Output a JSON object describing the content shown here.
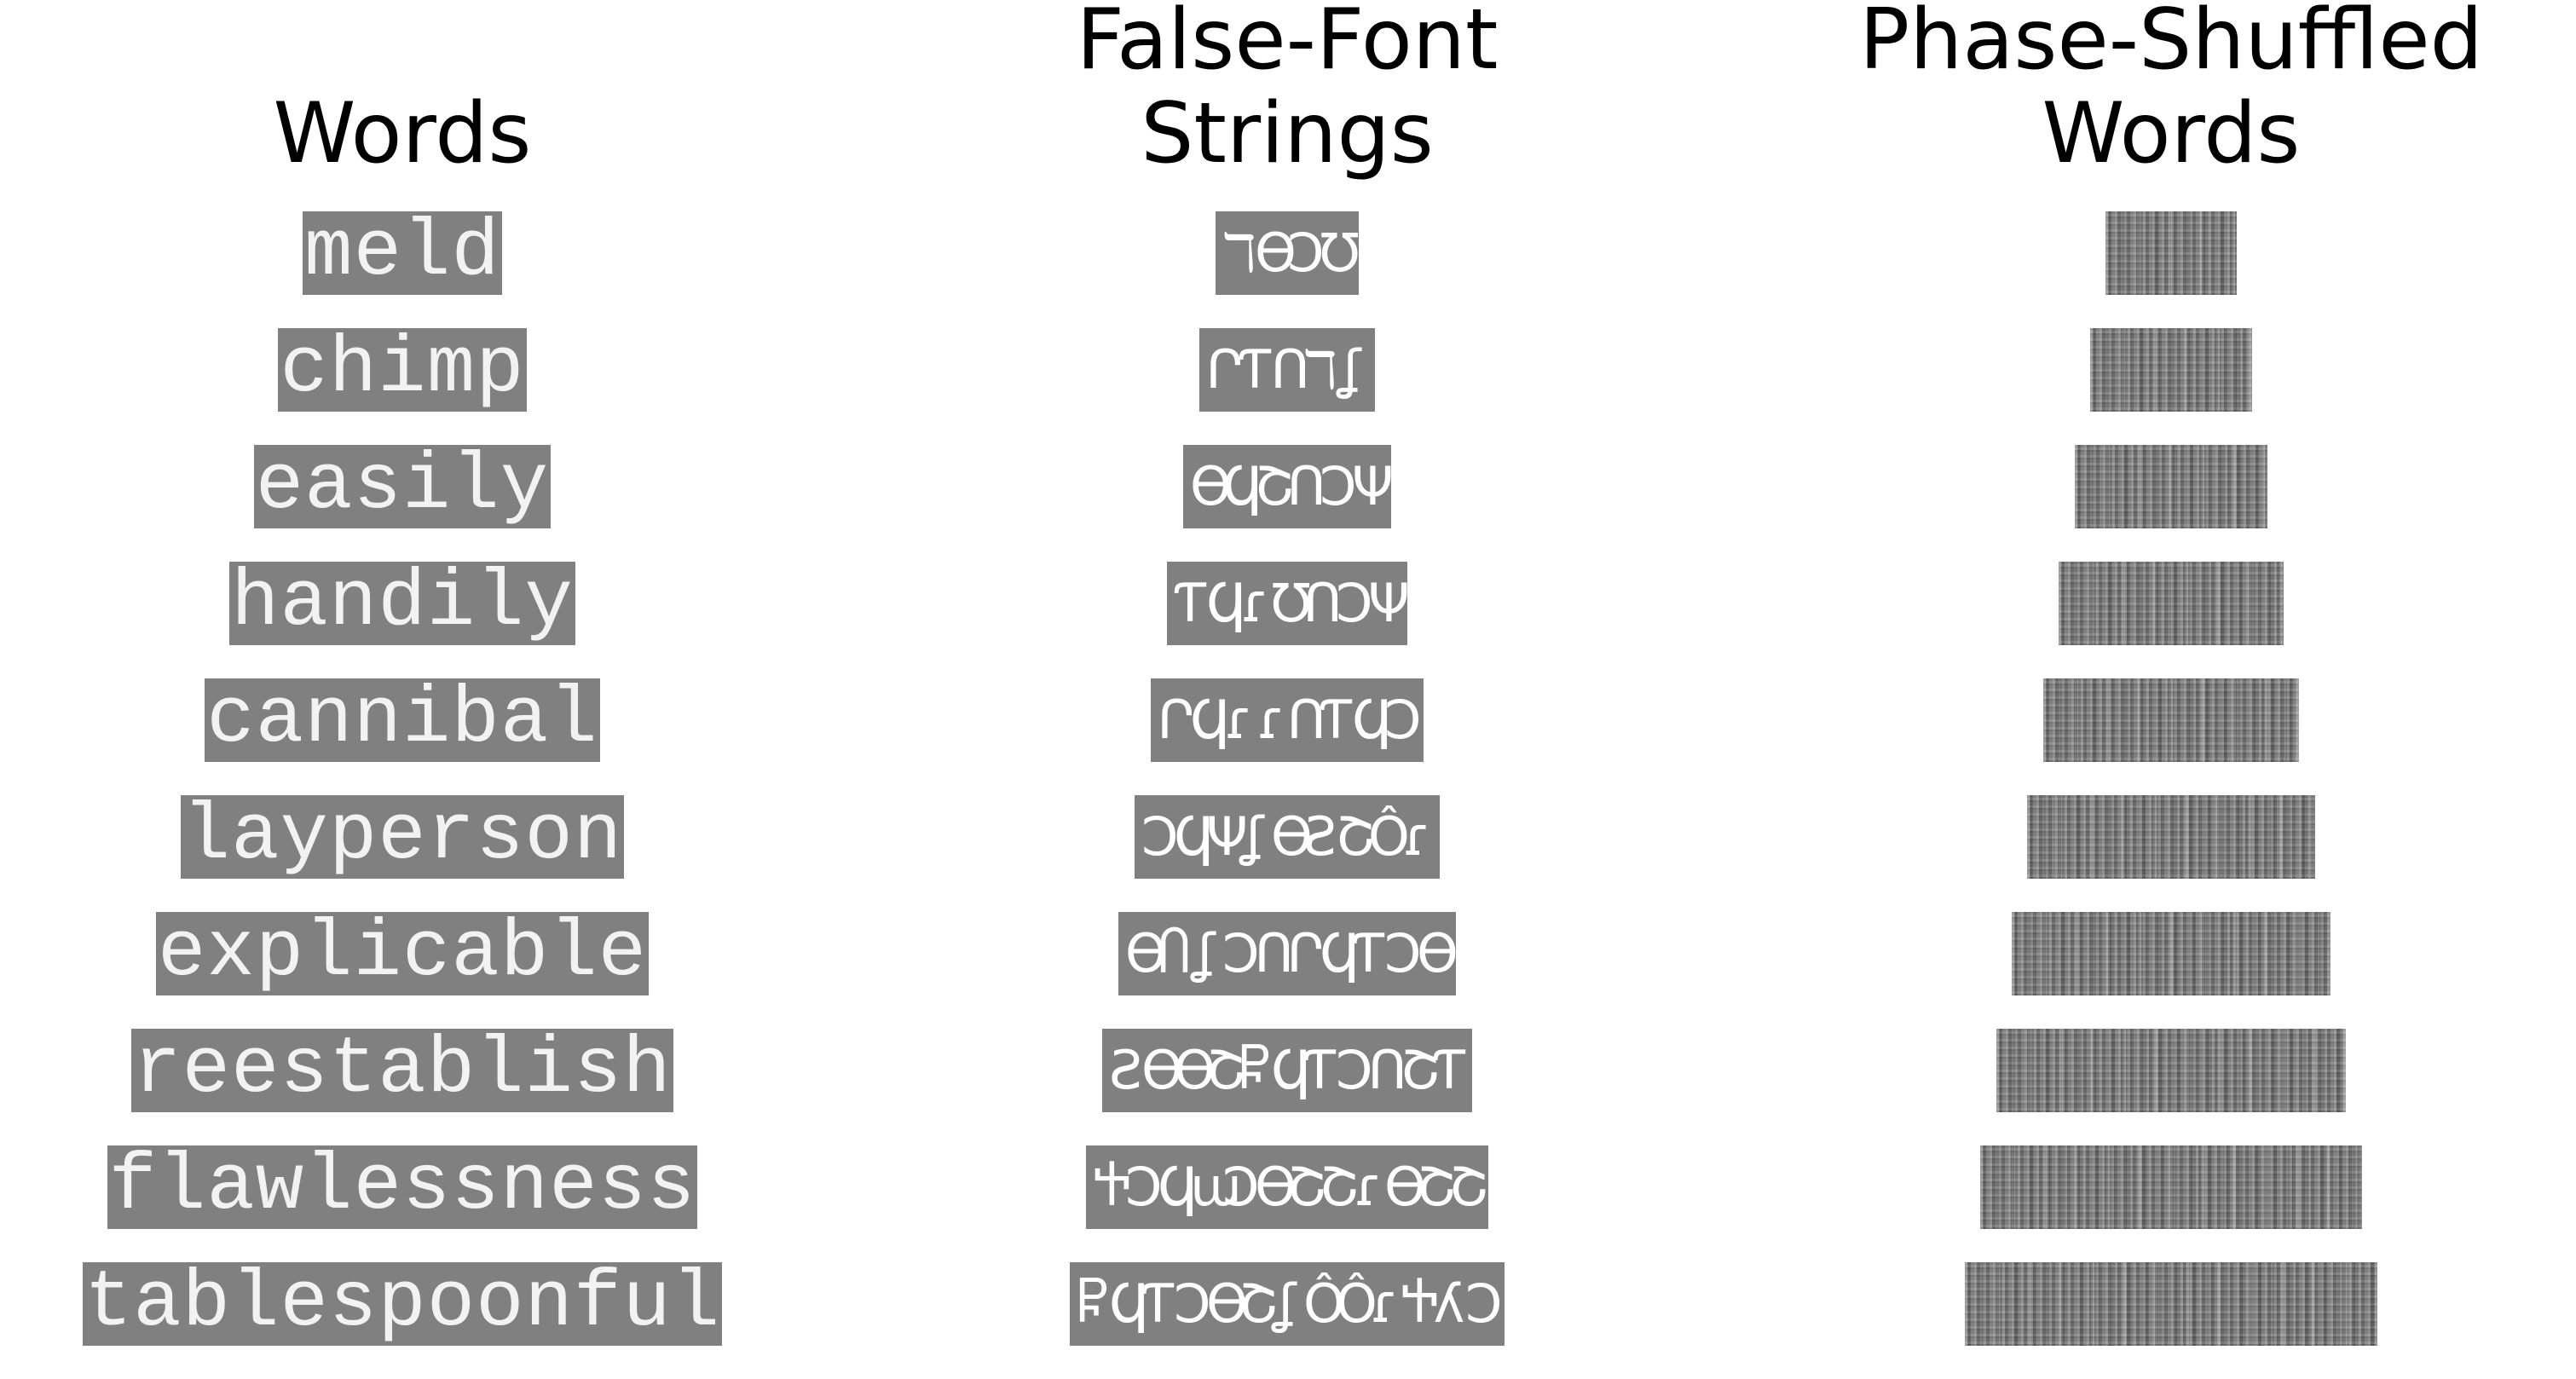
{
  "columns": {
    "words": {
      "header_lines": [
        "Words"
      ],
      "items": [
        "meld",
        "chimp",
        "easily",
        "handily",
        "cannibal",
        "layperson",
        "explicable",
        "reestablish",
        "flawlessness",
        "tablespoonful"
      ]
    },
    "false_font": {
      "header_lines": [
        "False-Font",
        "Strings"
      ],
      "glyph_sets": [
        [
          "ℸ",
          "ϴ",
          "Ͻ",
          "Ʊ"
        ],
        [
          "Ր",
          "Ƭ",
          "Ո",
          "ℸ",
          "ʆ"
        ],
        [
          "ϴ",
          "Ϥ",
          "Շ",
          "Ո",
          "Ͻ",
          "Ψ"
        ],
        [
          "Ƭ",
          "Ϥ",
          "ɾ",
          "Ʊ",
          "Ո",
          "Ͻ",
          "Ψ"
        ],
        [
          "Ր",
          "Ϥ",
          "ɾ",
          "ɾ",
          "Ո",
          "Ƭ",
          "Ϥ",
          "Ͻ"
        ],
        [
          "Ͻ",
          "Ϥ",
          "Ψ",
          "ʆ",
          "ϴ",
          "Ƨ",
          "Շ",
          "Ô",
          "ɾ"
        ],
        [
          "ϴ",
          "Ⴖ",
          "ʆ",
          "Ͻ",
          "Ո",
          "Ր",
          "Ϥ",
          "Ƭ",
          "Ͻ",
          "ϴ"
        ],
        [
          "Ƨ",
          "ϴ",
          "ϴ",
          "Շ",
          "Ⴜ",
          "Ϥ",
          "Ƭ",
          "Ͻ",
          "Ո",
          "Շ",
          "Ƭ"
        ],
        [
          "Ⴕ",
          "Ͻ",
          "Ϥ",
          "ɯ",
          "Ͻ",
          "ϴ",
          "Շ",
          "Շ",
          "ɾ",
          "ϴ",
          "Շ",
          "Շ"
        ],
        [
          "Ⴜ",
          "Ϥ",
          "Ƭ",
          "Ͻ",
          "ϴ",
          "Շ",
          "ʆ",
          "Ô",
          "Ô",
          "ɾ",
          "Ⴕ",
          "ʎ",
          "Ͻ"
        ]
      ]
    },
    "phase_shuffled": {
      "header_lines": [
        "Phase-Shuffled",
        "Words"
      ],
      "letter_counts": [
        4,
        5,
        6,
        7,
        8,
        9,
        10,
        11,
        12,
        13
      ]
    }
  },
  "colors": {
    "stimulus_background": "#808080",
    "stimulus_foreground": "#f2f2f2",
    "header_text": "#000000",
    "page_background": "#ffffff"
  }
}
